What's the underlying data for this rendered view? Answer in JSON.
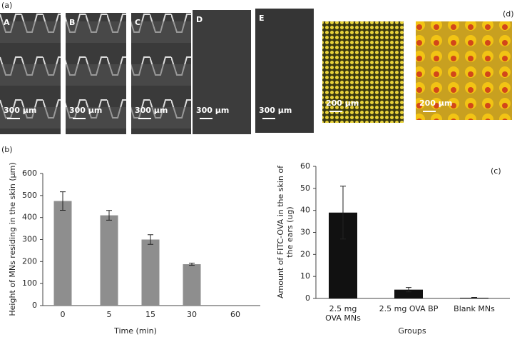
{
  "panel_labels": [
    "(a)",
    "(b)",
    "(c)",
    "(d)"
  ],
  "images": [
    {
      "letter": "A",
      "scale": "300 μm"
    },
    {
      "letter": "B",
      "scale": "300 μm"
    },
    {
      "letter": "C",
      "scale": "300 μm"
    },
    {
      "letter": "D",
      "scale": "300 μm"
    },
    {
      "letter": "E",
      "scale": "300 μm"
    },
    {
      "scale": "200 μm"
    },
    {
      "scale": "200 μm"
    }
  ],
  "chart_data": [
    {
      "type": "bar",
      "categories": [
        "0",
        "5",
        "15",
        "30",
        "60"
      ],
      "values": [
        475,
        410,
        300,
        188,
        0
      ],
      "errors": [
        42,
        22,
        22,
        5,
        0
      ],
      "color": "#8e8e8e",
      "ylim": [
        0,
        600
      ],
      "yticks": [
        0,
        100,
        200,
        300,
        400,
        500,
        600
      ],
      "x_label": "Time (min)",
      "y_label": "Height of MNs residing in the skin (μm)"
    },
    {
      "type": "bar",
      "categories": [
        "2.5 mg\nOVA MNs",
        "2.5 mg OVA BP",
        "Blank MNs"
      ],
      "values": [
        39,
        4,
        0.3
      ],
      "errors": [
        12,
        1,
        0.2
      ],
      "color": "#111111",
      "ylim": [
        0,
        60
      ],
      "yticks": [
        0,
        10,
        20,
        30,
        40,
        50,
        60
      ],
      "x_label": "Groups",
      "y_label": "Amount of FITC-OVA in the skin of the ears (ug)"
    }
  ]
}
